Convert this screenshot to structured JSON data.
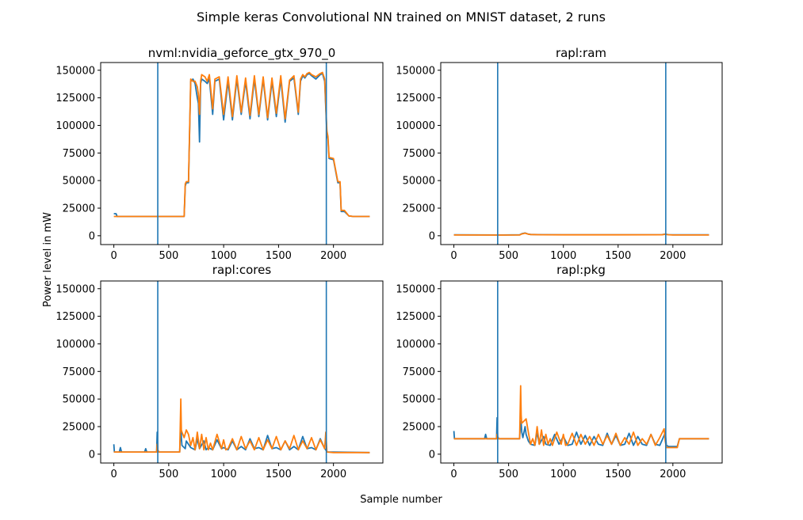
{
  "figure": {
    "title": "Simple keras Convolutional NN trained on MNIST dataset, 2 runs",
    "xlabel": "Sample number",
    "ylabel": "Power level in mW"
  },
  "colors": {
    "series1": "#1f77b4",
    "series2": "#ff7f0e",
    "vline": "#1f77b4"
  },
  "chart_data": [
    {
      "type": "line",
      "title": "nvml:nvidia_geforce_gtx_970_0",
      "xlim": [
        -120,
        2450
      ],
      "ylim": [
        -8000,
        157000
      ],
      "xticks": [
        0,
        500,
        1000,
        1500,
        2000
      ],
      "yticks": [
        0,
        25000,
        50000,
        75000,
        100000,
        125000,
        150000
      ],
      "vlines": [
        400,
        1935
      ],
      "series": [
        {
          "x": [
            0,
            20,
            30,
            640,
            650,
            660,
            680,
            700,
            720,
            740,
            760,
            770,
            780,
            790,
            800,
            830,
            850,
            870,
            900,
            920,
            960,
            1000,
            1040,
            1080,
            1120,
            1160,
            1200,
            1240,
            1280,
            1320,
            1360,
            1400,
            1440,
            1480,
            1520,
            1560,
            1600,
            1640,
            1680,
            1700,
            1720,
            1740,
            1760,
            1780,
            1800,
            1840,
            1880,
            1900,
            1920,
            1930,
            1940,
            1950,
            1960,
            2000,
            2040,
            2060,
            2070,
            2100,
            2140,
            2180,
            2330
          ],
          "y": [
            20000,
            20000,
            17500,
            17500,
            45000,
            48000,
            48000,
            140000,
            142000,
            138000,
            125000,
            120000,
            85000,
            138000,
            142000,
            140000,
            138000,
            142000,
            110000,
            140000,
            142000,
            105000,
            140000,
            105000,
            142000,
            110000,
            140000,
            106000,
            142000,
            108000,
            142000,
            105000,
            140000,
            108000,
            142000,
            103000,
            140000,
            143000,
            110000,
            140000,
            145000,
            143000,
            146000,
            147000,
            145000,
            142000,
            146000,
            147000,
            140000,
            115000,
            92000,
            88000,
            70000,
            69000,
            48000,
            48000,
            22000,
            22000,
            18000,
            17500,
            17500
          ]
        },
        {
          "x": [
            0,
            20,
            30,
            640,
            650,
            660,
            680,
            700,
            720,
            740,
            760,
            770,
            780,
            790,
            800,
            830,
            850,
            870,
            900,
            920,
            960,
            1000,
            1040,
            1080,
            1120,
            1160,
            1200,
            1240,
            1280,
            1320,
            1360,
            1400,
            1440,
            1480,
            1520,
            1560,
            1600,
            1640,
            1680,
            1700,
            1720,
            1740,
            1760,
            1780,
            1800,
            1840,
            1880,
            1900,
            1920,
            1930,
            1940,
            1950,
            1960,
            2000,
            2040,
            2060,
            2070,
            2100,
            2140,
            2180,
            2330
          ],
          "y": [
            17500,
            17500,
            17500,
            17500,
            47000,
            49000,
            49000,
            142000,
            140000,
            140000,
            135000,
            128000,
            110000,
            140000,
            146000,
            144000,
            140000,
            146000,
            115000,
            142000,
            144000,
            110000,
            144000,
            108000,
            145000,
            112000,
            143000,
            109000,
            145000,
            110000,
            144000,
            107000,
            143000,
            111000,
            145000,
            106000,
            141000,
            145000,
            112000,
            142000,
            146000,
            144000,
            147000,
            148000,
            146000,
            144000,
            147000,
            148000,
            142000,
            118000,
            95000,
            90000,
            71000,
            70000,
            49000,
            49000,
            23000,
            23000,
            18000,
            17500,
            17500
          ]
        }
      ]
    },
    {
      "type": "line",
      "title": "rapl:ram",
      "xlim": [
        -120,
        2450
      ],
      "ylim": [
        -8000,
        157000
      ],
      "xticks": [
        0,
        500,
        1000,
        1500,
        2000
      ],
      "yticks": [
        0,
        25000,
        50000,
        75000,
        100000,
        125000,
        150000
      ],
      "vlines": [
        400,
        1935
      ],
      "series": [
        {
          "x": [
            0,
            400,
            600,
            620,
            650,
            680,
            700,
            800,
            1000,
            1500,
            1900,
            1930,
            1960,
            2000,
            2330
          ],
          "y": [
            800,
            700,
            800,
            1800,
            2500,
            1500,
            1200,
            1000,
            900,
            900,
            1000,
            1500,
            1000,
            800,
            800
          ]
        },
        {
          "x": [
            0,
            400,
            600,
            620,
            650,
            680,
            700,
            800,
            1000,
            1500,
            1900,
            1930,
            1960,
            2000,
            2330
          ],
          "y": [
            700,
            600,
            700,
            1600,
            2300,
            1400,
            1100,
            900,
            800,
            800,
            900,
            1300,
            900,
            700,
            700
          ]
        }
      ]
    },
    {
      "type": "line",
      "title": "rapl:cores",
      "xlim": [
        -120,
        2450
      ],
      "ylim": [
        -8000,
        157000
      ],
      "xticks": [
        0,
        500,
        1000,
        1500,
        2000
      ],
      "yticks": [
        0,
        25000,
        50000,
        75000,
        100000,
        125000,
        150000
      ],
      "vlines": [
        400,
        1935
      ],
      "series": [
        {
          "x": [
            0,
            5,
            10,
            50,
            60,
            70,
            280,
            290,
            300,
            390,
            395,
            400,
            410,
            600,
            610,
            615,
            620,
            650,
            660,
            700,
            740,
            760,
            780,
            820,
            840,
            860,
            900,
            940,
            980,
            1000,
            1040,
            1080,
            1120,
            1160,
            1200,
            1240,
            1280,
            1320,
            1360,
            1400,
            1440,
            1480,
            1520,
            1560,
            1600,
            1640,
            1680,
            1720,
            1760,
            1800,
            1840,
            1880,
            1920,
            1930,
            1940,
            2000,
            2330
          ],
          "y": [
            9000,
            2000,
            2000,
            2000,
            6000,
            2000,
            2000,
            5000,
            2000,
            2000,
            20000,
            4000,
            2000,
            2000,
            30000,
            15000,
            8000,
            5000,
            12000,
            6000,
            4000,
            14000,
            5000,
            12000,
            4000,
            6000,
            4000,
            13000,
            5000,
            6000,
            4000,
            12000,
            4000,
            7000,
            4000,
            14000,
            5000,
            6000,
            4000,
            17000,
            5000,
            6000,
            4000,
            12000,
            4000,
            7000,
            4000,
            16000,
            5000,
            6000,
            4000,
            14000,
            5000,
            4000,
            2000,
            2000,
            1500
          ]
        },
        {
          "x": [
            0,
            10,
            300,
            390,
            395,
            400,
            410,
            600,
            610,
            615,
            620,
            640,
            660,
            680,
            700,
            720,
            740,
            760,
            780,
            800,
            820,
            840,
            860,
            880,
            900,
            940,
            980,
            1000,
            1020,
            1040,
            1080,
            1120,
            1160,
            1200,
            1240,
            1280,
            1320,
            1360,
            1400,
            1440,
            1480,
            1520,
            1560,
            1600,
            1640,
            1680,
            1720,
            1760,
            1800,
            1840,
            1880,
            1920,
            1930,
            1940,
            2000,
            2330
          ],
          "y": [
            2000,
            2000,
            2000,
            2000,
            9000,
            4000,
            2000,
            2000,
            50000,
            22000,
            20000,
            15000,
            22000,
            18000,
            8000,
            15000,
            4000,
            20000,
            5000,
            18000,
            4000,
            15000,
            4000,
            10000,
            4000,
            18000,
            5000,
            13000,
            4000,
            5000,
            14000,
            4000,
            16000,
            5000,
            12000,
            4000,
            15000,
            4000,
            13000,
            5000,
            16000,
            4000,
            12000,
            5000,
            17000,
            4000,
            12000,
            5000,
            15000,
            4000,
            13000,
            5000,
            20000,
            2000,
            1500,
            1500
          ]
        }
      ]
    },
    {
      "type": "line",
      "title": "rapl:pkg",
      "xlim": [
        -120,
        2450
      ],
      "ylim": [
        -8000,
        157000
      ],
      "xticks": [
        0,
        500,
        1000,
        1500,
        2000
      ],
      "yticks": [
        0,
        25000,
        50000,
        75000,
        100000,
        125000,
        150000
      ],
      "vlines": [
        400,
        1935
      ],
      "series": [
        {
          "x": [
            0,
            5,
            10,
            280,
            290,
            300,
            390,
            395,
            400,
            410,
            600,
            610,
            615,
            620,
            630,
            650,
            660,
            680,
            700,
            740,
            760,
            780,
            820,
            840,
            880,
            920,
            960,
            1000,
            1040,
            1080,
            1120,
            1160,
            1200,
            1240,
            1280,
            1320,
            1360,
            1400,
            1440,
            1480,
            1520,
            1560,
            1600,
            1640,
            1680,
            1720,
            1760,
            1800,
            1840,
            1880,
            1920,
            1930,
            1940,
            1960,
            2000,
            2040,
            2060,
            2330
          ],
          "y": [
            21000,
            14000,
            14000,
            14000,
            18000,
            14000,
            14000,
            33000,
            16000,
            14000,
            14000,
            30000,
            28000,
            20000,
            15000,
            25000,
            18000,
            12000,
            9000,
            8000,
            20000,
            9000,
            16000,
            9000,
            8000,
            18000,
            9000,
            16000,
            8000,
            9000,
            20000,
            9000,
            17000,
            8000,
            16000,
            9000,
            8000,
            19000,
            9000,
            17000,
            8000,
            9000,
            19000,
            8000,
            16000,
            9000,
            8000,
            18000,
            9000,
            8000,
            17000,
            20000,
            8000,
            7000,
            7000,
            7000,
            14000,
            14000
          ]
        },
        {
          "x": [
            0,
            10,
            300,
            390,
            395,
            400,
            410,
            600,
            610,
            615,
            620,
            640,
            660,
            680,
            700,
            720,
            740,
            760,
            780,
            800,
            820,
            840,
            860,
            880,
            900,
            940,
            980,
            1000,
            1020,
            1040,
            1080,
            1120,
            1160,
            1200,
            1240,
            1280,
            1320,
            1360,
            1400,
            1440,
            1480,
            1520,
            1560,
            1600,
            1640,
            1680,
            1720,
            1760,
            1800,
            1840,
            1880,
            1920,
            1930,
            1940,
            1960,
            2000,
            2040,
            2060,
            2330
          ],
          "y": [
            14000,
            14000,
            14000,
            14000,
            18000,
            15000,
            14000,
            14000,
            62000,
            35000,
            28000,
            30000,
            32000,
            20000,
            9000,
            14000,
            8000,
            25000,
            9000,
            22000,
            8000,
            18000,
            9000,
            14000,
            8000,
            20000,
            9000,
            18000,
            8000,
            9000,
            19000,
            8000,
            18000,
            9000,
            16000,
            8000,
            18000,
            9000,
            17000,
            9000,
            19000,
            8000,
            15000,
            9000,
            20000,
            8000,
            14000,
            9000,
            18000,
            8000,
            15000,
            23000,
            12000,
            6000,
            6000,
            6000,
            6000,
            14000,
            14000
          ]
        }
      ]
    }
  ]
}
